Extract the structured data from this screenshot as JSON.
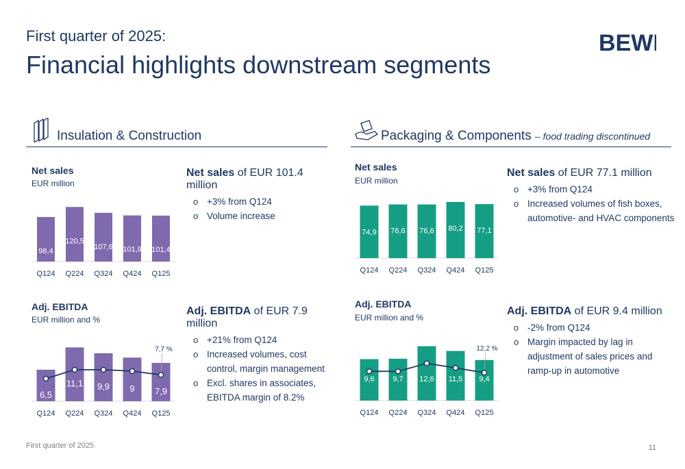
{
  "header": {
    "supertitle": "First quarter of 2025:",
    "title": "Financial highlights downstream segments",
    "logo_text": "BEWI"
  },
  "colors": {
    "purple": "#7f6aae",
    "teal": "#169e84",
    "navy": "#1f3864",
    "grey": "#7f7f7f"
  },
  "sections": {
    "insulation": {
      "title": "Insulation & Construction",
      "icon": "building-panels-icon"
    },
    "packaging": {
      "title": "Packaging & Components",
      "subtitle": "– food trading discontinued",
      "icon": "box-hand-icon"
    }
  },
  "text": {
    "ic_sales": {
      "label": "Net sales",
      "rest": " of EUR 101.4 million",
      "bullets": [
        "+3% from Q124",
        "Volume increase"
      ]
    },
    "ic_ebitda": {
      "label": "Adj. EBITDA",
      "rest": " of EUR 7.9 million",
      "bullets": [
        "+21% from Q124",
        "Increased volumes, cost control, margin management",
        "Excl. shares in associates, EBITDA margin of 8.2%"
      ]
    },
    "pc_sales": {
      "label": "Net sales",
      "rest": " of EUR 77.1 million",
      "bullets": [
        "+3% from Q124",
        "Increased volumes of fish boxes, automotive- and HVAC components"
      ]
    },
    "pc_ebitda": {
      "label": "Adj. EBITDA",
      "rest": " of EUR 9.4 million",
      "bullets": [
        "-2% from Q124",
        "Margin impacted by lag in adjustment of sales prices and ramp-up in automotive"
      ]
    }
  },
  "chart_data": [
    {
      "id": "ic_sales",
      "type": "bar",
      "title": "Net sales",
      "subtitle": "EUR million",
      "categories": [
        "Q124",
        "Q224",
        "Q324",
        "Q424",
        "Q125"
      ],
      "values": [
        98.4,
        120.5,
        107.6,
        101.9,
        101.4
      ],
      "value_labels": [
        "98,4",
        "120,5",
        "107,6",
        "101,9",
        "101,4"
      ],
      "ylim": [
        0,
        130
      ],
      "color": "#7f6aae"
    },
    {
      "id": "ic_ebitda",
      "type": "bar",
      "title": "Adj. EBITDA",
      "subtitle": "EUR million and %",
      "categories": [
        "Q124",
        "Q224",
        "Q324",
        "Q424",
        "Q125"
      ],
      "values": [
        6.5,
        11.1,
        9.9,
        9,
        7.9
      ],
      "value_labels": [
        "6,5",
        "11,1",
        "9,9",
        "9",
        "7,9"
      ],
      "ylim": [
        0,
        12
      ],
      "color": "#7f6aae",
      "margin_line": {
        "values": [
          6.6,
          9.2,
          9.2,
          8.8,
          7.7
        ],
        "ylim": [
          0,
          16
        ],
        "label": "7,7 %"
      }
    },
    {
      "id": "pc_sales",
      "type": "bar",
      "title": "Net sales",
      "subtitle": "EUR million",
      "categories": [
        "Q124",
        "Q224",
        "Q324",
        "Q424",
        "Q125"
      ],
      "values": [
        74.9,
        76.6,
        76.6,
        80.2,
        77.1
      ],
      "value_labels": [
        "74,9",
        "76,6",
        "76,6",
        "80,2",
        "77,1"
      ],
      "ylim": [
        0,
        85
      ],
      "color": "#169e84"
    },
    {
      "id": "pc_ebitda",
      "type": "bar",
      "title": "Adj. EBITDA",
      "subtitle": "EUR million and %",
      "categories": [
        "Q124",
        "Q224",
        "Q324",
        "Q424",
        "Q125"
      ],
      "values": [
        9.6,
        9.7,
        12.6,
        11.5,
        9.4
      ],
      "value_labels": [
        "9,6",
        "9,7",
        "12,6",
        "11,5",
        "9,4"
      ],
      "ylim": [
        0,
        13.5
      ],
      "color": "#169e84",
      "margin_line": {
        "values": [
          12.8,
          12.8,
          16.3,
          14.3,
          12.2
        ],
        "ylim": [
          0,
          24
        ],
        "label": "12,2 %"
      }
    }
  ],
  "footer": {
    "text": "First quarter of 2025",
    "page": "11"
  }
}
